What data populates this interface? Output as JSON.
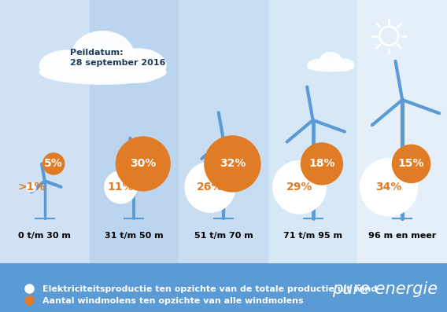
{
  "chart_data": {
    "type": "bubble",
    "categories": [
      "0 t/m 30 m",
      "31 t/m 50 m",
      "51 t/m 70 m",
      "71 t/m 95 m",
      "96 m en meer"
    ],
    "series": [
      {
        "name": "Elektriciteitsproductie ten opzichte van de totale productie uit wind",
        "color": "#ffffff",
        "values": [
          1,
          11,
          26,
          29,
          34
        ],
        "value_labels": [
          ">1%",
          "11%",
          "26%",
          "29%",
          "34%"
        ]
      },
      {
        "name": "Aantal windmolens ten opzichte van alle windmolens",
        "color": "#e07b26",
        "values": [
          5,
          30,
          32,
          18,
          15
        ],
        "value_labels": [
          "5%",
          "30%",
          "32%",
          "18%",
          "15%"
        ]
      }
    ],
    "data_labels": true,
    "legend": "lower left",
    "tick_labels": false,
    "annotations": [
      "Peildatum:\n28 september 2016",
      "pure energie"
    ]
  }
}
